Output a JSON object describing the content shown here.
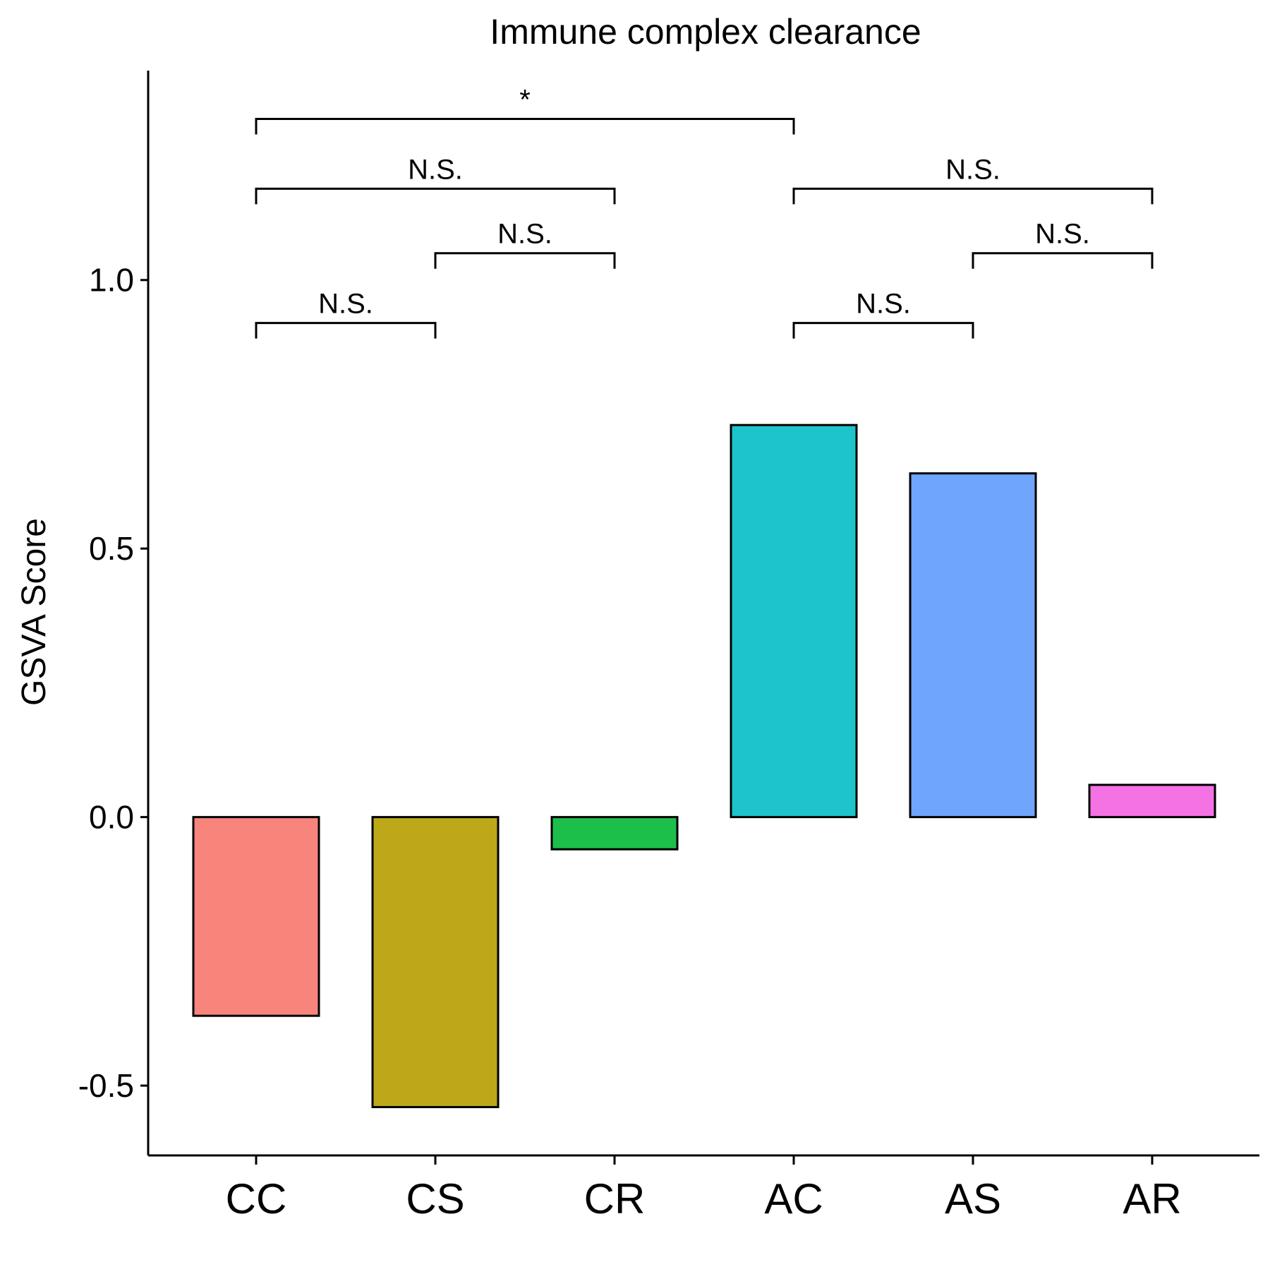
{
  "chart_data": {
    "type": "bar",
    "title": "Immune complex clearance",
    "xlabel": "",
    "ylabel": "GSVA Score",
    "categories": [
      "CC",
      "CS",
      "CR",
      "AC",
      "AS",
      "AR"
    ],
    "values": [
      -0.37,
      -0.54,
      -0.06,
      0.73,
      0.64,
      0.06
    ],
    "colors": [
      "#F8857C",
      "#BDA81A",
      "#1CBF4A",
      "#1DC4CB",
      "#70A5FE",
      "#F472E4"
    ],
    "ylim": [
      -0.63,
      1.39
    ],
    "yticks": [
      -0.5,
      0.0,
      0.5,
      1.0
    ],
    "ytick_labels": [
      "-0.5",
      "0.0",
      "0.5",
      "1.0"
    ],
    "grid": false,
    "legend": "none",
    "comparisons": [
      {
        "from": "CC",
        "to": "CS",
        "label": "N.S.",
        "y": 0.92
      },
      {
        "from": "CS",
        "to": "CR",
        "label": "N.S.",
        "y": 1.05
      },
      {
        "from": "CC",
        "to": "CR",
        "label": "N.S.",
        "y": 1.17
      },
      {
        "from": "CC",
        "to": "AC",
        "label": "*",
        "y": 1.3
      },
      {
        "from": "AC",
        "to": "AS",
        "label": "N.S.",
        "y": 0.92
      },
      {
        "from": "AS",
        "to": "AR",
        "label": "N.S.",
        "y": 1.05
      },
      {
        "from": "AC",
        "to": "AR",
        "label": "N.S.",
        "y": 1.17
      }
    ]
  }
}
